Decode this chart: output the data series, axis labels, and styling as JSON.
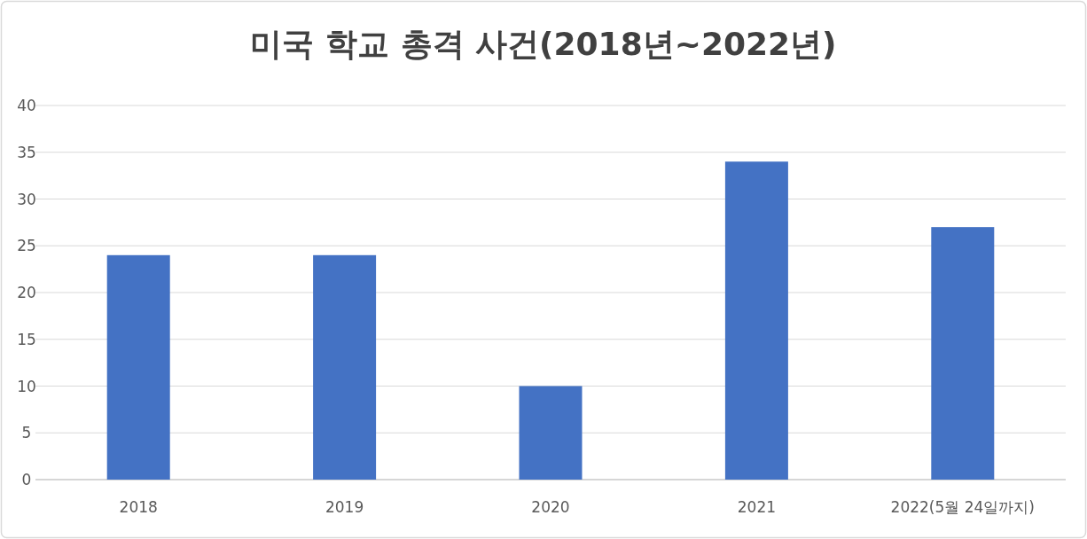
{
  "chart_data": {
    "type": "bar",
    "title": "미국 학교 총격 사건(2018년~2022년)",
    "categories": [
      "2018",
      "2019",
      "2020",
      "2021",
      "2022(5월 24일까지)"
    ],
    "values": [
      24,
      24,
      10,
      34,
      27
    ],
    "color": "#4472c4",
    "ylim": [
      0,
      40
    ],
    "yticks": [
      0,
      5,
      10,
      15,
      20,
      25,
      30,
      35,
      40
    ],
    "grid": "y"
  }
}
